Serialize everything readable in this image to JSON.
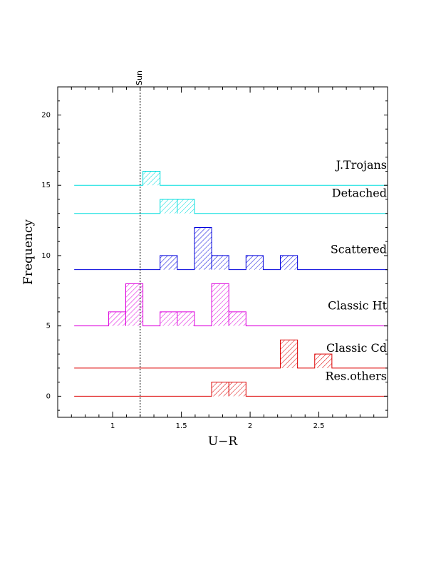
{
  "chart_data": {
    "type": "histogram",
    "title": "",
    "xlabel": "U−R",
    "ylabel": "Frequency",
    "xlim": [
      0.6,
      3.0
    ],
    "ylim": [
      -1.5,
      22
    ],
    "x_ticks": [
      {
        "value": 1,
        "label": "1"
      },
      {
        "value": 1.5,
        "label": "1.5"
      },
      {
        "value": 2,
        "label": "2"
      },
      {
        "value": 2.5,
        "label": "2.5"
      }
    ],
    "y_ticks": [
      {
        "value": 0,
        "label": "0"
      },
      {
        "value": 5,
        "label": "5"
      },
      {
        "value": 10,
        "label": "10"
      },
      {
        "value": 15,
        "label": "15"
      },
      {
        "value": 20,
        "label": "20"
      }
    ],
    "bin_width": 0.125,
    "histogram_x_range": [
      0.72,
      3.0
    ],
    "reference_line": {
      "x": 1.2,
      "label": "Sun",
      "style": "dotted"
    },
    "series": [
      {
        "name": "J.Trojans",
        "color": "#00dddd",
        "offset": 15,
        "bins": [
          {
            "x0": 1.22,
            "x1": 1.345,
            "count": 1
          }
        ]
      },
      {
        "name": "Detached",
        "color": "#00dddd",
        "offset": 13,
        "bins": [
          {
            "x0": 1.345,
            "x1": 1.47,
            "count": 1
          },
          {
            "x0": 1.47,
            "x1": 1.595,
            "count": 1
          }
        ]
      },
      {
        "name": "Scattered",
        "color": "#0000dd",
        "offset": 9,
        "bins": [
          {
            "x0": 1.345,
            "x1": 1.47,
            "count": 1
          },
          {
            "x0": 1.595,
            "x1": 1.72,
            "count": 3
          },
          {
            "x0": 1.72,
            "x1": 1.845,
            "count": 1
          },
          {
            "x0": 1.97,
            "x1": 2.095,
            "count": 1
          },
          {
            "x0": 2.22,
            "x1": 2.345,
            "count": 1
          }
        ]
      },
      {
        "name": "Classic Ht",
        "color": "#dd00dd",
        "offset": 5,
        "bins": [
          {
            "x0": 0.97,
            "x1": 1.095,
            "count": 1
          },
          {
            "x0": 1.095,
            "x1": 1.22,
            "count": 3
          },
          {
            "x0": 1.345,
            "x1": 1.47,
            "count": 1
          },
          {
            "x0": 1.47,
            "x1": 1.595,
            "count": 1
          },
          {
            "x0": 1.72,
            "x1": 1.845,
            "count": 3
          },
          {
            "x0": 1.845,
            "x1": 1.97,
            "count": 1
          }
        ]
      },
      {
        "name": "Classic Cd",
        "color": "#dd0000",
        "offset": 2,
        "bins": [
          {
            "x0": 2.22,
            "x1": 2.345,
            "count": 2
          },
          {
            "x0": 2.47,
            "x1": 2.595,
            "count": 1
          }
        ]
      },
      {
        "name": "Res.others",
        "color": "#dd0000",
        "offset": 0,
        "bins": [
          {
            "x0": 1.72,
            "x1": 1.845,
            "count": 1
          },
          {
            "x0": 1.845,
            "x1": 1.97,
            "count": 1
          }
        ]
      }
    ]
  }
}
